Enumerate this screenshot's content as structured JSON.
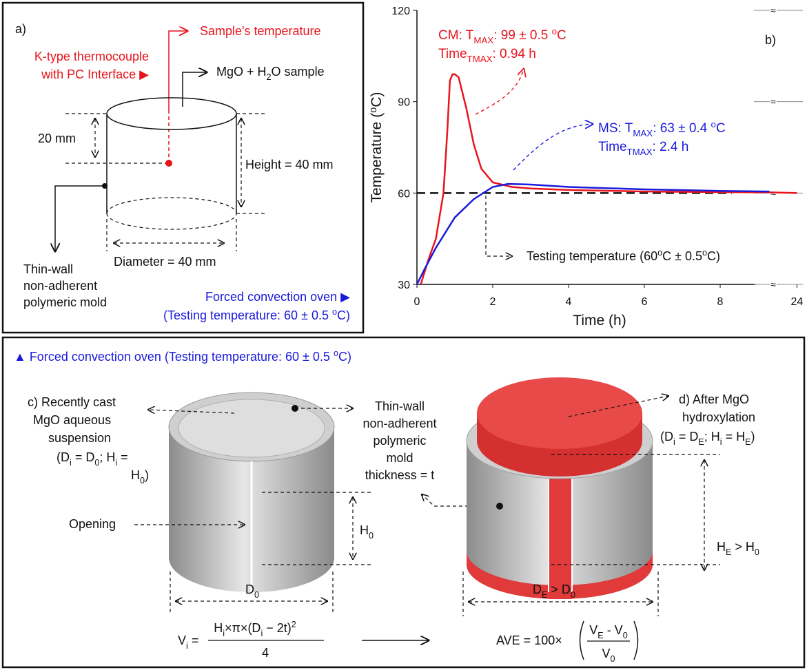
{
  "panel_a": {
    "label": "a)",
    "probe": "Sample's temperature",
    "thermocouple": [
      "K-type thermocouple",
      "with PC Interface ▶"
    ],
    "sample": [
      "MgO + H",
      "2",
      "O sample"
    ],
    "depth": "20 mm",
    "height": "Height = 40 mm",
    "diameter": "Diameter = 40 mm",
    "mold": [
      "Thin-wall",
      "non-adherent",
      "polymeric mold"
    ],
    "oven": "Forced convection oven ▶",
    "oven_temperature": [
      "(Testing temperature: 60 ± 0.5 ",
      "o",
      "C)"
    ]
  },
  "chart_data": {
    "type": "line",
    "label": "b)",
    "xlabel": "Time (h)",
    "ylabel": [
      "Temperature (",
      "o",
      "C)"
    ],
    "xlim": [
      0,
      24.05
    ],
    "x_break": [
      9.4,
      23.8
    ],
    "xticks": [
      0,
      2,
      4,
      6,
      8,
      24
    ],
    "ylim": [
      30,
      120
    ],
    "yticks": [
      30,
      60,
      90,
      120
    ],
    "series": [
      {
        "name": "CM",
        "color": "#e8141c",
        "x": [
          0.1,
          0.3,
          0.5,
          0.7,
          0.8,
          0.87,
          0.94,
          1.0,
          1.1,
          1.3,
          1.5,
          1.7,
          2.0,
          2.5,
          3,
          4,
          6,
          8,
          9.3,
          24
        ],
        "values": [
          30,
          38,
          45,
          60,
          80,
          97,
          99,
          99,
          98,
          88,
          76,
          68,
          63.5,
          62,
          61.5,
          61,
          60.5,
          60.3,
          60.2,
          60
        ],
        "annotation": [
          [
            ": T",
            "MAX",
            ": 99 ± 0.5 ",
            "o",
            "C"
          ],
          [
            "Time",
            "TMAX",
            ": 0.94 h"
          ]
        ]
      },
      {
        "name": "MS",
        "color": "#1a1adc",
        "x": [
          0,
          0.2,
          0.5,
          1.0,
          1.5,
          2.0,
          2.4,
          3,
          4,
          6,
          8,
          9.3
        ],
        "values": [
          30,
          35,
          42,
          52,
          58,
          62,
          63,
          62.8,
          62,
          61.2,
          60.7,
          60.5
        ],
        "annotation": [
          [
            ": T",
            "MAX",
            ": 63 ± 0.4 ",
            "o",
            "C"
          ],
          [
            "Time",
            "TMAX",
            ": 2.4 h"
          ]
        ]
      }
    ],
    "reference_line": {
      "value": 60,
      "label": [
        "Testing temperature (60",
        "o",
        "C ± 0.5",
        "o",
        "C)"
      ]
    }
  },
  "panel_cd": {
    "oven": [
      "▲ Forced convection oven (Testing temperature: 60 ± 0.5 ",
      "o",
      "C)"
    ],
    "c_title": [
      "c) Recently cast",
      "MgO aqueous",
      "suspension"
    ],
    "c_condition": [
      [
        "(D",
        "i",
        " = D",
        "0",
        "; H",
        "i",
        " ="
      ],
      [
        "H",
        "0",
        ")"
      ]
    ],
    "opening": "Opening",
    "h0": [
      "H",
      "0"
    ],
    "d0": [
      "D",
      "0"
    ],
    "mold": [
      "Thin-wall",
      "non-adherent",
      "polymeric",
      "mold",
      "thickness = t"
    ],
    "d_title": [
      "d) After MgO",
      "hydroxylation"
    ],
    "d_condition": [
      "(D",
      "i",
      " = D",
      "E",
      ";  H",
      "i",
      " = H",
      "E",
      ")"
    ],
    "he": [
      "H",
      "E",
      " > H",
      "0"
    ],
    "de": [
      "D",
      "E",
      " > D",
      "0"
    ],
    "volume": {
      "lhs": [
        "V",
        "i",
        " = "
      ],
      "numerator": [
        "H",
        "i",
        "×π×(D",
        "i",
        " − 2t)",
        "2"
      ],
      "denominator": "4"
    },
    "expansion": {
      "lhs": "AVE = 100×",
      "numerator": [
        "V",
        "E",
        " - V",
        "0"
      ],
      "denominator": [
        "V",
        "0"
      ]
    }
  }
}
